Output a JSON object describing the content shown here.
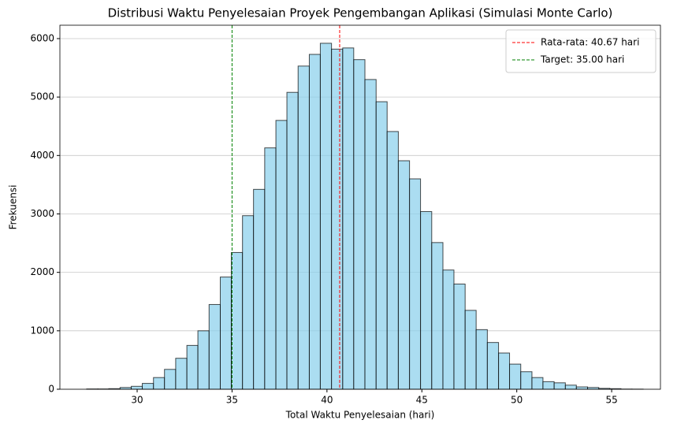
{
  "chart_data": {
    "type": "histogram",
    "title": "Distribusi Waktu Penyelesaian Proyek Pengembangan Aplikasi (Simulasi Monte Carlo)",
    "xlabel": "Total Waktu Penyelesaian (hari)",
    "ylabel": "Frekuensi",
    "bins": [
      27.34,
      27.93,
      28.51,
      29.1,
      29.69,
      30.27,
      30.86,
      31.44,
      32.03,
      32.62,
      33.2,
      33.79,
      34.38,
      34.96,
      35.55,
      36.13,
      36.72,
      37.31,
      37.89,
      38.48,
      39.07,
      39.65,
      40.24,
      40.83,
      41.41,
      42.0,
      42.59,
      43.17,
      43.76,
      44.35,
      44.93,
      45.52,
      46.11,
      46.69,
      47.28,
      47.86,
      48.45,
      49.04,
      49.62,
      50.21,
      50.8,
      51.38,
      51.97,
      52.56,
      53.14,
      53.73,
      54.32,
      54.9,
      55.49,
      56.07,
      56.66
    ],
    "values": [
      5,
      5,
      10,
      30,
      50,
      100,
      200,
      340,
      530,
      750,
      1000,
      1450,
      1920,
      2340,
      2970,
      3420,
      4130,
      4600,
      5080,
      5530,
      5730,
      5920,
      5820,
      5840,
      5640,
      5300,
      4920,
      4410,
      3910,
      3600,
      3040,
      2510,
      2040,
      1800,
      1350,
      1020,
      800,
      620,
      430,
      300,
      200,
      130,
      110,
      70,
      40,
      30,
      15,
      10,
      3,
      2
    ],
    "color": "#87ceeb",
    "edgecolor": "#000000",
    "alpha": 0.7,
    "xlim": [
      25.93,
      57.57
    ],
    "ylim": [
      0,
      6229
    ],
    "xticks": [
      30,
      35,
      40,
      45,
      50,
      55
    ],
    "yticks": [
      0,
      1000,
      2000,
      3000,
      4000,
      5000,
      6000
    ],
    "grid": "y",
    "legend": "upper right",
    "vlines": [
      {
        "value": 40.67,
        "label": "Rata-rata: 40.67 hari",
        "color": "#ff0000"
      },
      {
        "value": 35.0,
        "label": "Target: 35.00 hari",
        "color": "#008000"
      }
    ]
  }
}
